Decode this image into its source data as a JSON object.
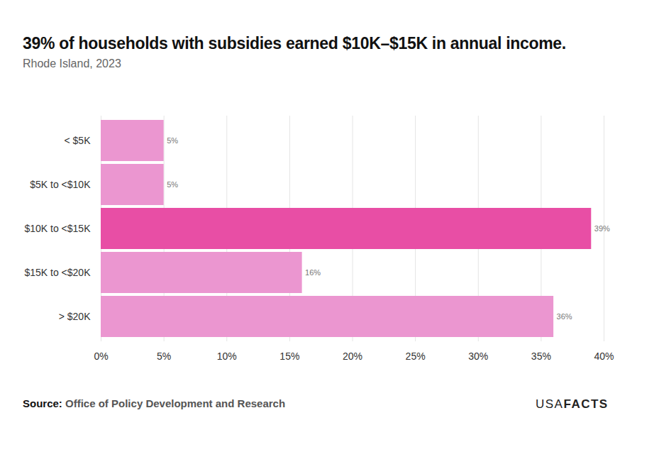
{
  "chart_data": {
    "type": "bar",
    "title": "39% of households with subsidies earned $10K–$15K in annual income.",
    "subtitle": "Rhode Island, 2023",
    "source_label": "Source:",
    "source": "Office of Policy Development and Research",
    "logo": [
      "USA",
      "FACTS"
    ],
    "orientation": "horizontal",
    "categories": [
      "< $5K",
      "$5K to <$10K",
      "$10K to <$15K",
      "$15K to <$20K",
      "> $20K"
    ],
    "values": [
      5,
      5,
      39,
      16,
      36
    ],
    "value_labels": [
      "5%",
      "5%",
      "39%",
      "16%",
      "36%"
    ],
    "colors": [
      "#eb96d0",
      "#eb96d0",
      "#e84ea5",
      "#eb96d0",
      "#eb96d0"
    ],
    "xlim": [
      0,
      40
    ],
    "xticks": [
      {
        "value": 0,
        "label": "0%"
      },
      {
        "value": 5,
        "label": "5%"
      },
      {
        "value": 10,
        "label": "10%"
      },
      {
        "value": 15,
        "label": "15%"
      },
      {
        "value": 20,
        "label": "20%"
      },
      {
        "value": 25,
        "label": "25%"
      },
      {
        "value": 30,
        "label": "30%"
      },
      {
        "value": 35,
        "label": "35%"
      },
      {
        "value": 40,
        "label": "40%"
      }
    ],
    "grid": true,
    "data_labels": true
  }
}
